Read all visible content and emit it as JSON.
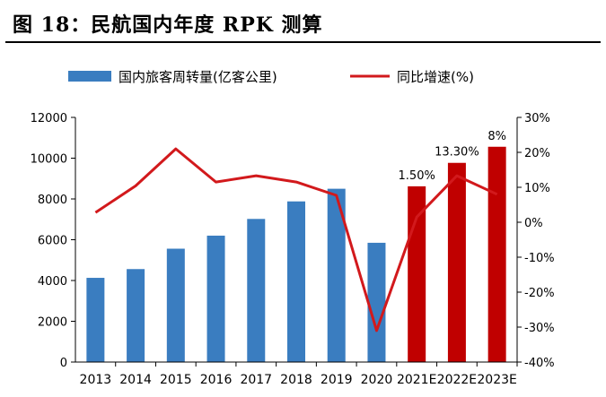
{
  "figure": {
    "title": "图 18：民航国内年度 RPK 测算"
  },
  "colors": {
    "bar_actual": "#3a7dc0",
    "bar_estimate": "#c00000",
    "line": "#d2191c",
    "axis": "#000000"
  },
  "chart_data": {
    "type": "bar",
    "categories": [
      "2013",
      "2014",
      "2015",
      "2016",
      "2017",
      "2018",
      "2019",
      "2020",
      "2021E",
      "2022E",
      "2023E"
    ],
    "series": [
      {
        "name": "国内旅客周转量(亿客公里)",
        "type": "bar",
        "axis": "left",
        "values": [
          4130,
          4560,
          5560,
          6200,
          7020,
          7880,
          8500,
          5850,
          8620,
          9770,
          10560
        ],
        "estimate_from_index": 8
      },
      {
        "name": "同比增速(%)",
        "type": "line",
        "axis": "right",
        "values": [
          2.8,
          10.4,
          21.0,
          11.5,
          13.3,
          11.5,
          7.7,
          -31.0,
          1.5,
          13.3,
          8.0
        ]
      }
    ],
    "left_axis": {
      "ylim": [
        0,
        12000
      ],
      "ticks": [
        "0",
        "2000",
        "4000",
        "6000",
        "8000",
        "10000",
        "12000"
      ]
    },
    "right_axis": {
      "ylim": [
        -40,
        30
      ],
      "ticks": [
        "-40%",
        "-30%",
        "-20%",
        "-10%",
        "0%",
        "10%",
        "20%",
        "30%"
      ]
    },
    "data_labels": [
      {
        "index": 8,
        "text": "1.50%"
      },
      {
        "index": 9,
        "text": "13.30%"
      },
      {
        "index": 10,
        "text": "8%"
      }
    ],
    "legend_position": "top",
    "grid": false
  }
}
